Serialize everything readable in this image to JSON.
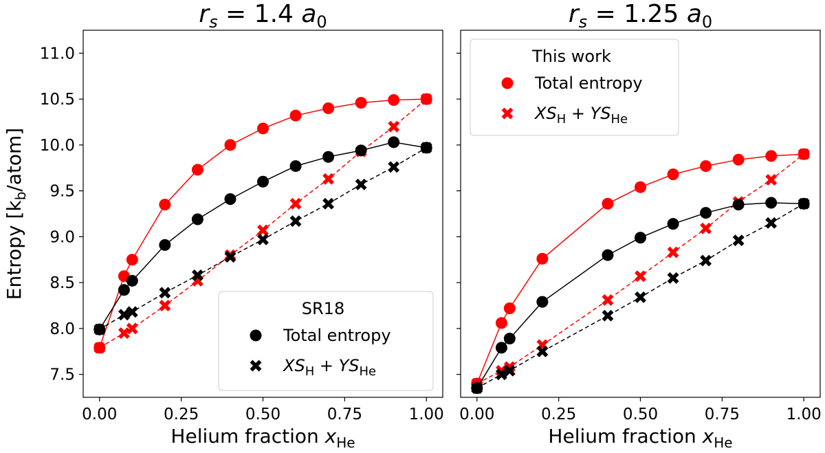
{
  "chart_data": [
    {
      "type": "line",
      "panel": "left",
      "title": {
        "var": "r",
        "sub": "s",
        "rest": " = 1.4 ",
        "unit": "a",
        "unit_sub": "0"
      },
      "xlabel": {
        "text": "Helium fraction ",
        "var": "x",
        "sub": "He"
      },
      "ylabel": "Entropy [k_b/atom]",
      "ylabel_parts": {
        "pre": "Entropy [k",
        "sub": "b",
        "post": "/atom]"
      },
      "xlim": [
        -0.05,
        1.05
      ],
      "ylim": [
        7.25,
        11.25
      ],
      "xticks": [
        0.0,
        0.25,
        0.5,
        0.75,
        1.0
      ],
      "xtick_labels": [
        "0.00",
        "0.25",
        "0.50",
        "0.75",
        "1.00"
      ],
      "yticks": [
        7.5,
        8.0,
        8.5,
        9.0,
        9.5,
        10.0,
        10.5,
        11.0
      ],
      "ytick_labels": [
        "7.5",
        "8.0",
        "8.5",
        "9.0",
        "9.5",
        "10.0",
        "10.5",
        "11.0"
      ],
      "show_yticklabels": true,
      "legend": {
        "title": "SR18",
        "placement": "lower-right",
        "entries": [
          {
            "marker": "circle",
            "color": "#000000",
            "text": "Total entropy"
          },
          {
            "marker": "x",
            "color": "#000000",
            "math": true,
            "parts": [
              "X",
              "S",
              "H",
              " + ",
              "Y",
              "S",
              "He"
            ]
          }
        ]
      },
      "series": [
        {
          "name": "This work total entropy",
          "color": "#ff0000",
          "marker": "circle",
          "linestyle": "solid",
          "x": [
            0.0,
            0.075,
            0.1,
            0.2,
            0.3,
            0.4,
            0.5,
            0.6,
            0.7,
            0.8,
            0.9,
            1.0
          ],
          "y": [
            7.79,
            8.57,
            8.75,
            9.35,
            9.73,
            10.0,
            10.18,
            10.32,
            10.4,
            10.46,
            10.49,
            10.5
          ]
        },
        {
          "name": "This work XS_H + YS_He",
          "color": "#ff0000",
          "marker": "x",
          "linestyle": "dashed",
          "x": [
            0.0,
            0.075,
            0.1,
            0.2,
            0.3,
            0.4,
            0.5,
            0.6,
            0.7,
            0.8,
            0.9,
            1.0
          ],
          "y": [
            7.79,
            7.95,
            8.0,
            8.25,
            8.52,
            8.8,
            9.07,
            9.36,
            9.63,
            9.93,
            10.2,
            10.5
          ]
        },
        {
          "name": "SR18 total entropy",
          "color": "#000000",
          "marker": "circle",
          "linestyle": "solid",
          "x": [
            0.0,
            0.075,
            0.1,
            0.2,
            0.3,
            0.4,
            0.5,
            0.6,
            0.7,
            0.8,
            0.9,
            1.0
          ],
          "y": [
            7.99,
            8.42,
            8.52,
            8.91,
            9.19,
            9.41,
            9.6,
            9.77,
            9.87,
            9.94,
            10.03,
            9.97
          ]
        },
        {
          "name": "SR18 XS_H + YS_He",
          "color": "#000000",
          "marker": "x",
          "linestyle": "dashed",
          "x": [
            0.0,
            0.075,
            0.1,
            0.2,
            0.3,
            0.4,
            0.5,
            0.6,
            0.7,
            0.8,
            0.9,
            1.0
          ],
          "y": [
            7.99,
            8.15,
            8.18,
            8.39,
            8.58,
            8.78,
            8.97,
            9.17,
            9.36,
            9.57,
            9.76,
            9.97
          ]
        }
      ]
    },
    {
      "type": "line",
      "panel": "right",
      "title": {
        "var": "r",
        "sub": "s",
        "rest": " = 1.25 ",
        "unit": "a",
        "unit_sub": "0"
      },
      "xlabel": {
        "text": "Helium fraction ",
        "var": "x",
        "sub": "He"
      },
      "xlim": [
        -0.05,
        1.05
      ],
      "ylim": [
        7.25,
        11.25
      ],
      "xticks": [
        0.0,
        0.25,
        0.5,
        0.75,
        1.0
      ],
      "xtick_labels": [
        "0.00",
        "0.25",
        "0.50",
        "0.75",
        "1.00"
      ],
      "yticks": [
        7.5,
        8.0,
        8.5,
        9.0,
        9.5,
        10.0,
        10.5,
        11.0
      ],
      "show_yticklabels": false,
      "legend": {
        "title": "This work",
        "placement": "upper-left",
        "entries": [
          {
            "marker": "circle",
            "color": "#ff0000",
            "text": "Total entropy"
          },
          {
            "marker": "x",
            "color": "#ff0000",
            "math": true,
            "parts": [
              "X",
              "S",
              "H",
              " + ",
              "Y",
              "S",
              "He"
            ]
          }
        ]
      },
      "series": [
        {
          "name": "This work total entropy",
          "color": "#ff0000",
          "marker": "circle",
          "linestyle": "solid",
          "x": [
            0.0,
            0.075,
            0.1,
            0.2,
            0.4,
            0.5,
            0.6,
            0.7,
            0.8,
            0.9,
            1.0
          ],
          "y": [
            7.4,
            8.06,
            8.22,
            8.76,
            9.36,
            9.54,
            9.68,
            9.77,
            9.84,
            9.88,
            9.9
          ]
        },
        {
          "name": "This work XS_H + YS_He",
          "color": "#ff0000",
          "marker": "x",
          "linestyle": "dashed",
          "x": [
            0.0,
            0.075,
            0.1,
            0.2,
            0.4,
            0.5,
            0.6,
            0.7,
            0.8,
            0.9,
            1.0
          ],
          "y": [
            7.4,
            7.54,
            7.58,
            7.82,
            8.31,
            8.57,
            8.83,
            9.09,
            9.38,
            9.62,
            9.9
          ]
        },
        {
          "name": "SR18 total entropy",
          "color": "#000000",
          "marker": "circle",
          "linestyle": "solid",
          "x": [
            0.0,
            0.075,
            0.1,
            0.2,
            0.4,
            0.5,
            0.6,
            0.7,
            0.8,
            0.9,
            1.0
          ],
          "y": [
            7.35,
            7.79,
            7.89,
            8.29,
            8.8,
            8.99,
            9.14,
            9.26,
            9.35,
            9.37,
            9.36
          ]
        },
        {
          "name": "SR18 XS_H + YS_He",
          "color": "#000000",
          "marker": "x",
          "linestyle": "dashed",
          "x": [
            0.0,
            0.075,
            0.1,
            0.2,
            0.4,
            0.5,
            0.6,
            0.7,
            0.8,
            0.9,
            1.0
          ],
          "y": [
            7.35,
            7.5,
            7.54,
            7.75,
            8.14,
            8.34,
            8.55,
            8.74,
            8.96,
            9.15,
            9.36
          ]
        }
      ]
    }
  ]
}
